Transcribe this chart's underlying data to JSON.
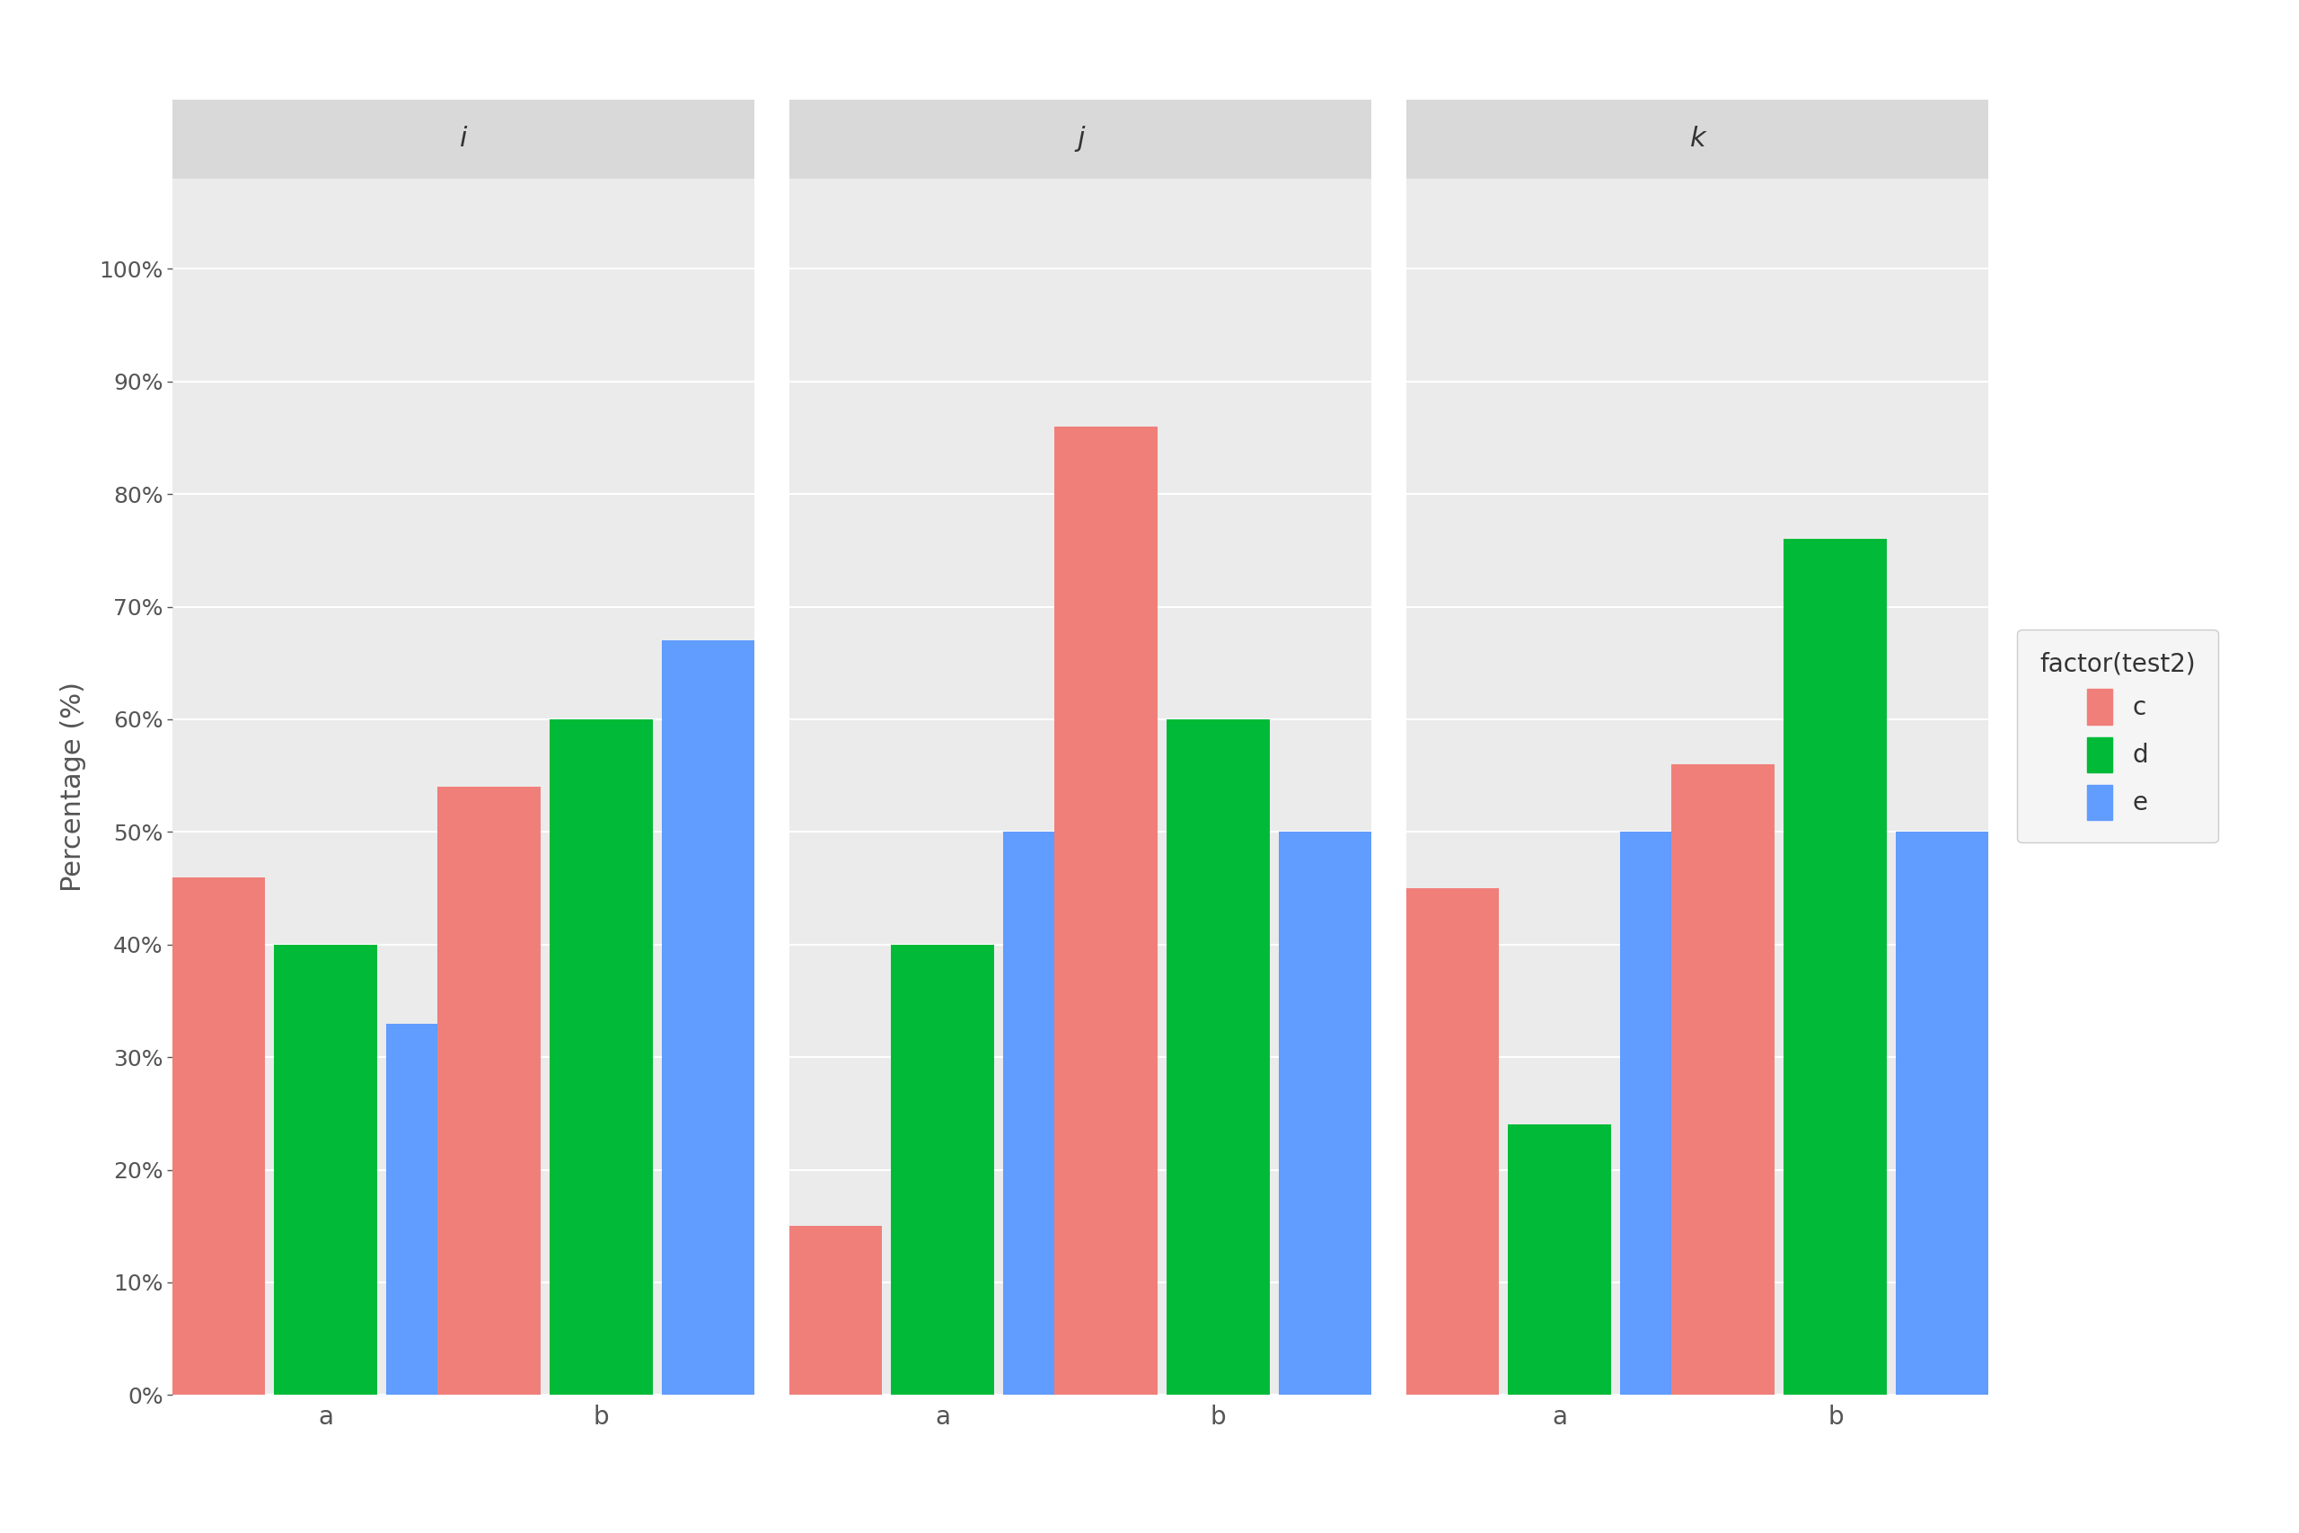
{
  "facets": [
    "i",
    "j",
    "k"
  ],
  "groups": [
    "a",
    "b"
  ],
  "series": [
    "c",
    "d",
    "e"
  ],
  "values": {
    "i": {
      "a": [
        0.46,
        0.4,
        0.33
      ],
      "b": [
        0.54,
        0.6,
        0.67
      ]
    },
    "j": {
      "a": [
        0.15,
        0.4,
        0.5
      ],
      "b": [
        0.86,
        0.6,
        0.5
      ]
    },
    "k": {
      "a": [
        0.45,
        0.24,
        0.5
      ],
      "b": [
        0.56,
        0.76,
        0.5
      ]
    }
  },
  "colors": {
    "c": "#F07F7A",
    "d": "#00BA38",
    "e": "#619CFF"
  },
  "ylabel": "Percentage (%)",
  "legend_title": "factor(test2)",
  "ylim": [
    0,
    1.08
  ],
  "yticks": [
    0.0,
    0.1,
    0.2,
    0.3,
    0.4,
    0.5,
    0.6,
    0.7,
    0.8,
    0.9,
    1.0
  ],
  "ytick_labels": [
    "0%",
    "10%",
    "20%",
    "30%",
    "40%",
    "50%",
    "60%",
    "70%",
    "80%",
    "90%",
    "100%"
  ],
  "figure_background": "#FFFFFF",
  "panel_background": "#EBEBEB",
  "strip_background": "#D9D9D9",
  "gridline_color": "#FFFFFF",
  "bar_width": 0.22,
  "x_positions": [
    0.28,
    0.82
  ]
}
